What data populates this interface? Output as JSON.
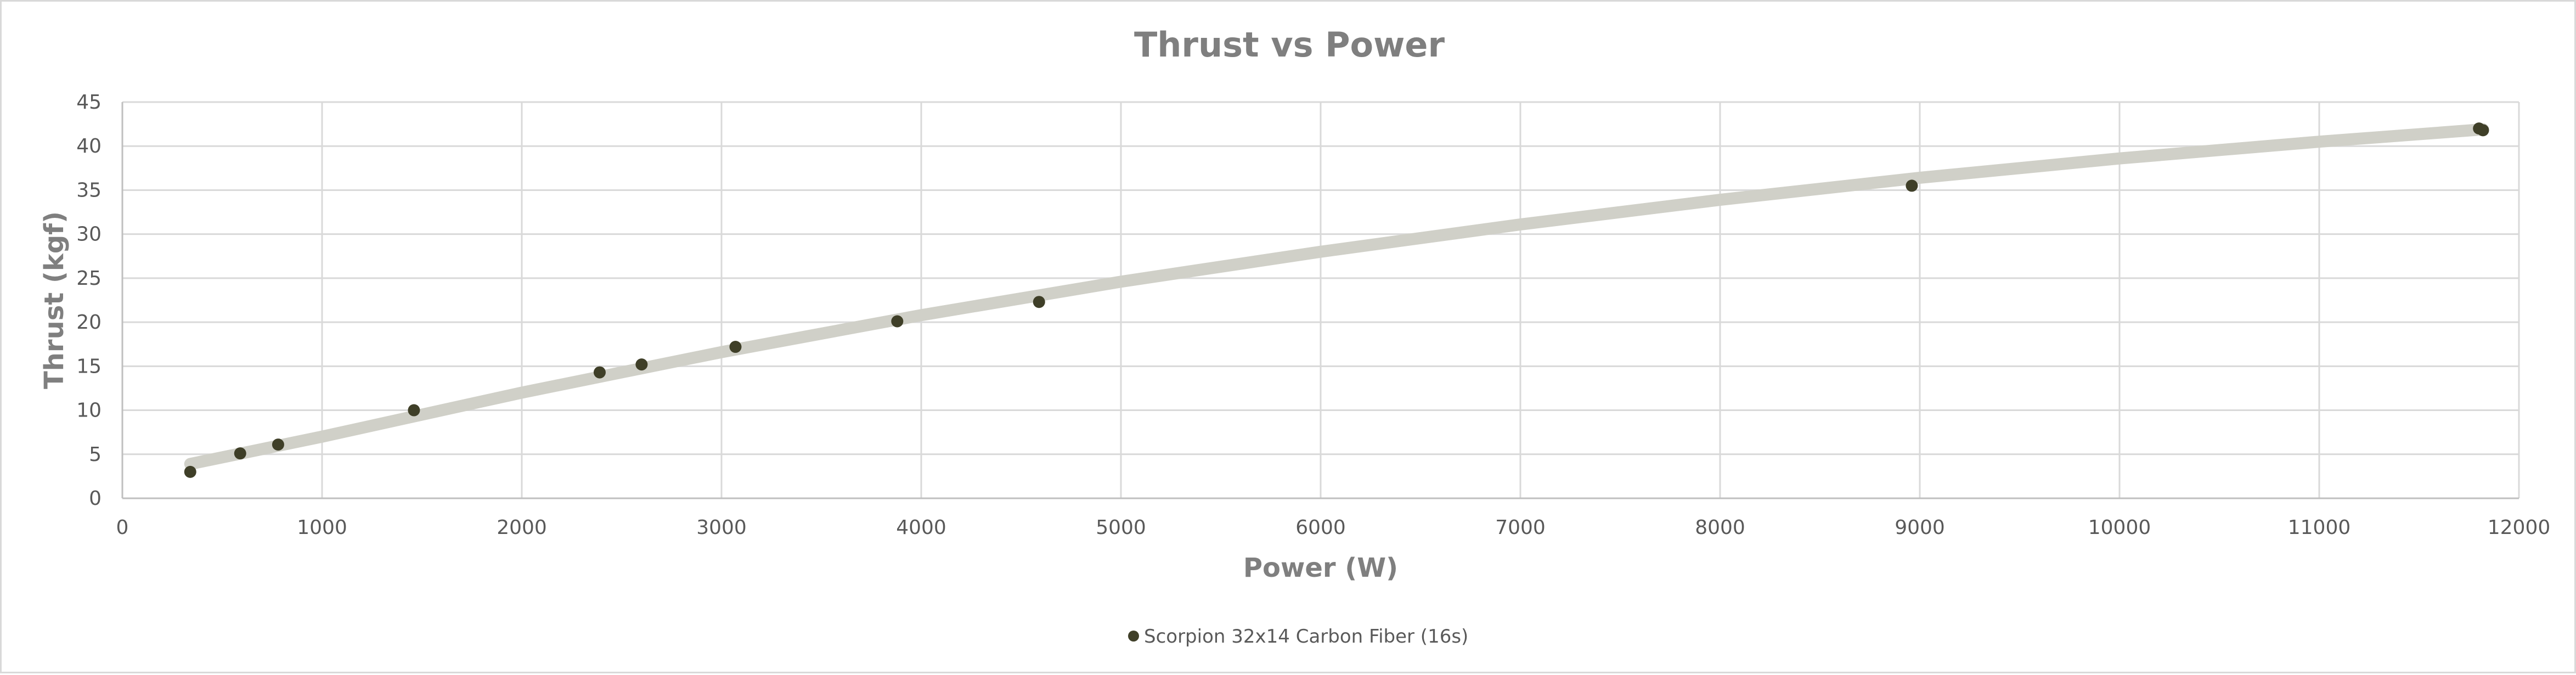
{
  "chart_data": {
    "type": "scatter",
    "title": "Thrust vs Power",
    "xlabel": "Power (W)",
    "ylabel": "Thrust (kgf)",
    "xlim": [
      0,
      12000
    ],
    "ylim": [
      0,
      45
    ],
    "x_ticks": [
      0,
      1000,
      2000,
      3000,
      4000,
      5000,
      6000,
      7000,
      8000,
      9000,
      10000,
      11000,
      12000
    ],
    "y_ticks": [
      0,
      5,
      10,
      15,
      20,
      25,
      30,
      35,
      40,
      45
    ],
    "grid": true,
    "legend_position": "bottom",
    "series": [
      {
        "name": "Scorpion 32x14 Carbon Fiber (16s)",
        "color": "#3f3f28",
        "x": [
          340,
          590,
          780,
          1460,
          2390,
          2600,
          3070,
          3880,
          4590,
          8960,
          11800,
          11820
        ],
        "y": [
          3.0,
          5.1,
          6.1,
          10.0,
          14.3,
          15.2,
          17.2,
          20.1,
          22.3,
          35.5,
          42.0,
          41.8
        ]
      }
    ],
    "trendline": {
      "color": "#d0d0c8",
      "x": [
        340,
        1000,
        2000,
        3000,
        4000,
        5000,
        6000,
        7000,
        8000,
        9000,
        10000,
        11000,
        11820
      ],
      "y": [
        3.9,
        7.0,
        12.0,
        16.6,
        20.8,
        24.6,
        28.0,
        31.1,
        33.9,
        36.4,
        38.6,
        40.5,
        41.9
      ]
    }
  }
}
